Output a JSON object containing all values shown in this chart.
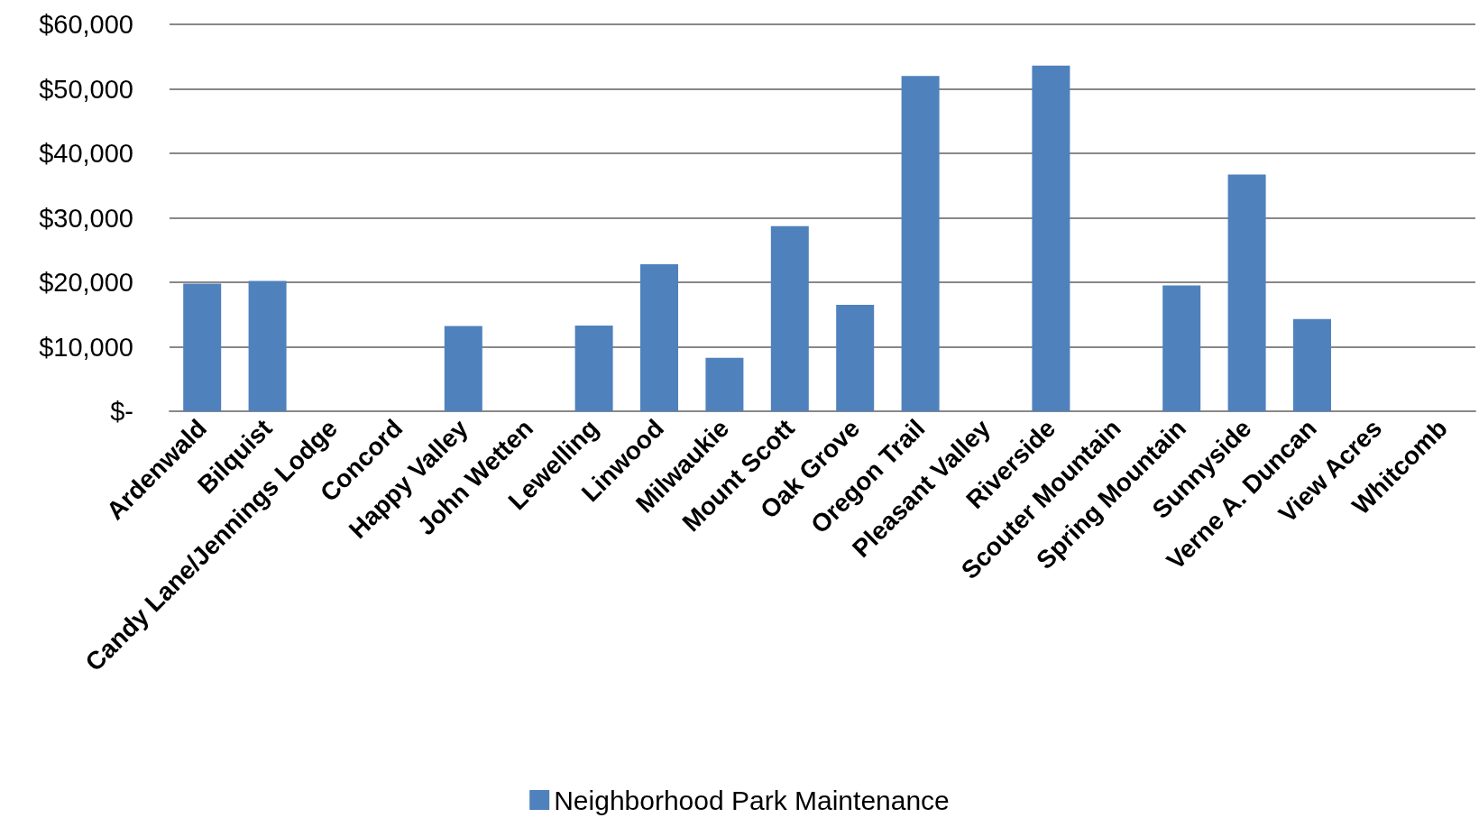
{
  "chart_data": {
    "type": "bar",
    "categories": [
      "Ardenwald",
      "Bilquist",
      "Candy Lane/Jennings Lodge",
      "Concord",
      "Happy Valley",
      "John Wetten",
      "Lewelling",
      "Linwood",
      "Milwaukie",
      "Mount Scott",
      "Oak Grove",
      "Oregon Trail",
      "Pleasant Valley",
      "Riverside",
      "Scouter Mountain",
      "Spring Mountain",
      "Sunnyside",
      "Verne A. Duncan",
      "View Acres",
      "Whitcomb"
    ],
    "series": [
      {
        "name": "Neighborhood Park Maintenance",
        "color": "#4f81bd",
        "values": [
          19800,
          20200,
          0,
          0,
          13200,
          0,
          13300,
          22800,
          8300,
          28700,
          16500,
          52000,
          0,
          53600,
          0,
          19500,
          36700,
          14300,
          0,
          0
        ]
      }
    ],
    "ylim": [
      0,
      60000
    ],
    "yticks": [
      {
        "value": 0,
        "label": "$-"
      },
      {
        "value": 10000,
        "label": "$10,000"
      },
      {
        "value": 20000,
        "label": "$20,000"
      },
      {
        "value": 30000,
        "label": "$30,000"
      },
      {
        "value": 40000,
        "label": "$40,000"
      },
      {
        "value": 50000,
        "label": "$50,000"
      },
      {
        "value": 60000,
        "label": "$60,000"
      }
    ],
    "grid": "y",
    "legend": "bottom"
  }
}
